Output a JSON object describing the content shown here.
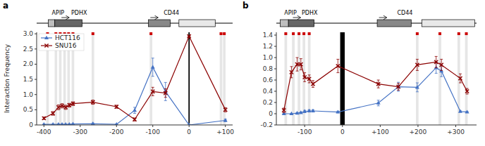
{
  "chart_data": [
    {
      "type": "line",
      "title": "a",
      "y_label": "Interaction Frequency",
      "legend": "upper left",
      "x": [
        -400,
        -375,
        -360,
        -350,
        -340,
        -330,
        -320,
        -265,
        -200,
        -150,
        -100,
        -65,
        0,
        100
      ],
      "series": [
        {
          "name": "HCT116",
          "color": "#4472C4",
          "marker": "triangle",
          "values": [
            0.02,
            0.02,
            0.02,
            0.02,
            0.02,
            0.02,
            0.03,
            0.04,
            0.02,
            0.48,
            1.9,
            1.1,
            0.0,
            0.15
          ],
          "errors": [
            0.01,
            0.01,
            0.01,
            0.01,
            0.01,
            0.01,
            0.01,
            0.02,
            0.01,
            0.1,
            0.3,
            0.3,
            0.0,
            0.04
          ]
        },
        {
          "name": "SNU16",
          "color": "#8B0000",
          "marker": "x",
          "values": [
            0.22,
            0.38,
            0.58,
            0.63,
            0.58,
            0.65,
            0.7,
            0.75,
            0.6,
            0.18,
            1.1,
            1.05,
            2.92,
            0.5
          ],
          "errors": [
            0.04,
            0.06,
            0.08,
            0.07,
            0.07,
            0.06,
            0.06,
            0.07,
            0.05,
            0.05,
            0.14,
            0.14,
            0.0,
            0.07
          ]
        }
      ],
      "xlim": [
        -420,
        120
      ],
      "ylim": [
        0,
        3.05
      ],
      "xticks": [
        -400,
        -300,
        -200,
        -100,
        0,
        {
          "value": 100,
          "label": "+100"
        }
      ],
      "yticks": [
        0,
        0.5,
        {
          "value": 1,
          "label": "1.0"
        },
        1.5,
        {
          "value": 2,
          "label": "2.0"
        },
        2.5,
        {
          "value": 3,
          "label": "3.0"
        }
      ],
      "bands": {
        "x": [
          -390,
          -367,
          -355,
          -343,
          -332,
          -320,
          -265,
          -105,
          88,
          97
        ],
        "width": 7,
        "color": "#DCDCDC"
      },
      "red_marks": {
        "x": [
          -390,
          -367,
          -355,
          -343,
          -332,
          -320,
          -265,
          -105,
          88,
          97
        ],
        "color": "#CC0000"
      },
      "vline": 0,
      "genes": [
        {
          "name": "APIP",
          "start": -388,
          "width": 18,
          "color": "#BEBEBE",
          "label_x": -378
        },
        {
          "name": "PDHX",
          "start": -370,
          "width": 75,
          "color": "#666666",
          "label_x": -325,
          "arrow_x": -340
        },
        {
          "name": "CD44",
          "start": -112,
          "width": 60,
          "color": "#888888",
          "label_x": -70,
          "arrow_x": -95
        },
        {
          "start": -28,
          "width": 100,
          "color": "#E8E8E8"
        }
      ]
    },
    {
      "type": "line",
      "title": "b",
      "x": [
        -155,
        -135,
        -120,
        -110,
        -100,
        -88,
        -78,
        -12,
        95,
        148,
        198,
        248,
        262,
        312,
        330
      ],
      "series": [
        {
          "color": "#4472C4",
          "marker": "triangle",
          "values": [
            0.0,
            0.0,
            0.01,
            0.02,
            0.04,
            0.05,
            0.05,
            0.03,
            0.19,
            0.48,
            0.47,
            0.82,
            0.76,
            0.04,
            0.03
          ],
          "errors": [
            0.005,
            0.005,
            0.01,
            0.01,
            0.02,
            0.02,
            0.02,
            0.015,
            0.05,
            0.08,
            0.08,
            0.1,
            0.1,
            0.01,
            0.01
          ]
        },
        {
          "color": "#8B0000",
          "marker": "x",
          "values": [
            0.06,
            0.74,
            0.88,
            0.88,
            0.65,
            0.62,
            0.53,
            0.85,
            0.53,
            0.48,
            0.87,
            0.92,
            0.87,
            0.63,
            0.4
          ],
          "errors": [
            0.04,
            0.1,
            0.12,
            0.1,
            0.08,
            0.07,
            0.06,
            0.12,
            0.07,
            0.06,
            0.1,
            0.1,
            0.1,
            0.08,
            0.05
          ]
        }
      ],
      "xlim": [
        -175,
        355
      ],
      "ylim": [
        -0.2,
        1.45
      ],
      "xticks": [
        -100,
        0,
        {
          "value": 100,
          "label": "+100"
        },
        {
          "value": 200,
          "label": "+200"
        },
        {
          "value": 300,
          "label": "+300"
        }
      ],
      "yticks": [
        -0.2,
        0,
        0.2,
        0.4,
        0.6,
        0.8,
        {
          "value": 1,
          "label": "1.0"
        },
        1.2,
        1.4
      ],
      "bands": {
        "x": [
          -150,
          -130,
          -115,
          -102,
          -88,
          198,
          258,
          308,
          328
        ],
        "width": 7,
        "color": "#DCDCDC"
      },
      "red_marks": {
        "x": [
          -150,
          -130,
          -115,
          -102,
          -88,
          198,
          258,
          308,
          328
        ],
        "color": "#CC0000"
      },
      "vband": {
        "x": 0,
        "width": 12
      },
      "genes": [
        {
          "name": "APIP",
          "start": -165,
          "width": 22,
          "color": "#BEBEBE",
          "label_x": -154
        },
        {
          "name": "PDHX",
          "start": -143,
          "width": 68,
          "color": "#666666",
          "label_x": -108,
          "arrow_x": -120
        },
        {
          "name": "CD44",
          "start": 92,
          "width": 90,
          "color": "#888888",
          "label_x": 145,
          "arrow_x": 108
        },
        {
          "start": 210,
          "width": 140,
          "color": "#E8E8E8"
        }
      ]
    }
  ]
}
